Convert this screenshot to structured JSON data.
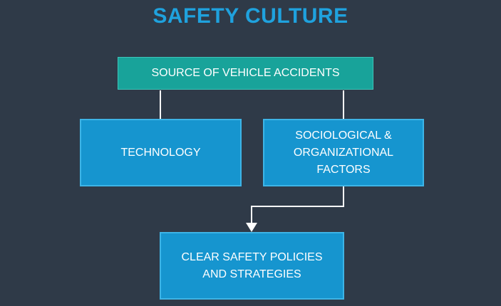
{
  "title": "SAFETY CULTURE",
  "nodes": {
    "source": "SOURCE OF VEHICLE ACCIDENTS",
    "technology": "TECHNOLOGY",
    "sociological": "SOCIOLOGICAL &\nORGANIZATIONAL\nFACTORS",
    "policies": "CLEAR SAFETY POLICIES\nAND STRATEGIES"
  },
  "colors": {
    "background": "#2f3a48",
    "title": "#1fa2de",
    "top_box": "#18a39a",
    "blue_box": "#1695cf",
    "connector": "#ffffff"
  }
}
